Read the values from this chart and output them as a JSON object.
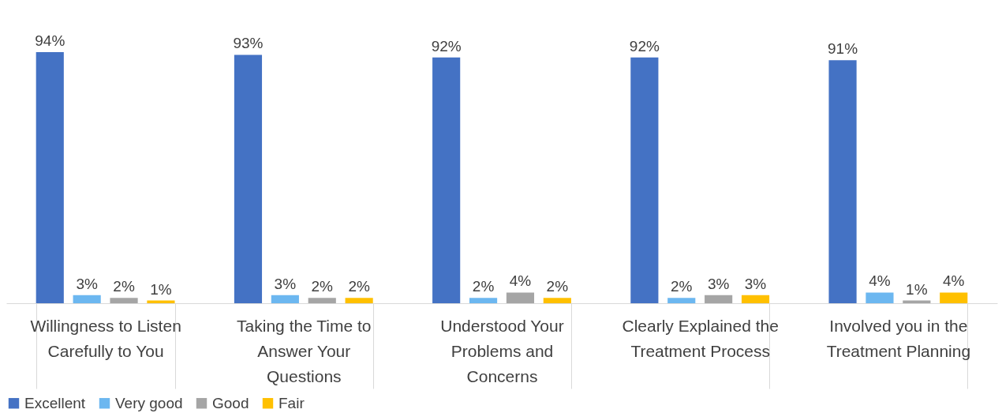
{
  "chart_data": {
    "type": "bar",
    "categories": [
      "Willingness to Listen Carefully to You",
      "Taking the Time to Answer Your Questions",
      "Understood Your Problems and Concerns",
      "Clearly Explained the Treatment Process",
      "Involved you in the Treatment Planning"
    ],
    "series": [
      {
        "name": "Excellent",
        "color": "#4472c4",
        "values": [
          94,
          93,
          92,
          92,
          91
        ],
        "value_labels": [
          "94%",
          "93%",
          "92%",
          "92%",
          "91%"
        ]
      },
      {
        "name": "Very good",
        "color": "#6cb7f0",
        "values": [
          3,
          3,
          2,
          2,
          4
        ],
        "value_labels": [
          "3%",
          "3%",
          "2%",
          "2%",
          "4%"
        ]
      },
      {
        "name": "Good",
        "color": "#a5a5a5",
        "values": [
          2,
          2,
          4,
          3,
          1
        ],
        "value_labels": [
          "2%",
          "2%",
          "4%",
          "3%",
          "1%"
        ]
      },
      {
        "name": "Fair",
        "color": "#ffc000",
        "values": [
          1,
          2,
          2,
          3,
          4
        ],
        "value_labels": [
          "1%",
          "2%",
          "2%",
          "3%",
          "4%"
        ]
      }
    ],
    "legend": "bottom",
    "grid": false
  }
}
